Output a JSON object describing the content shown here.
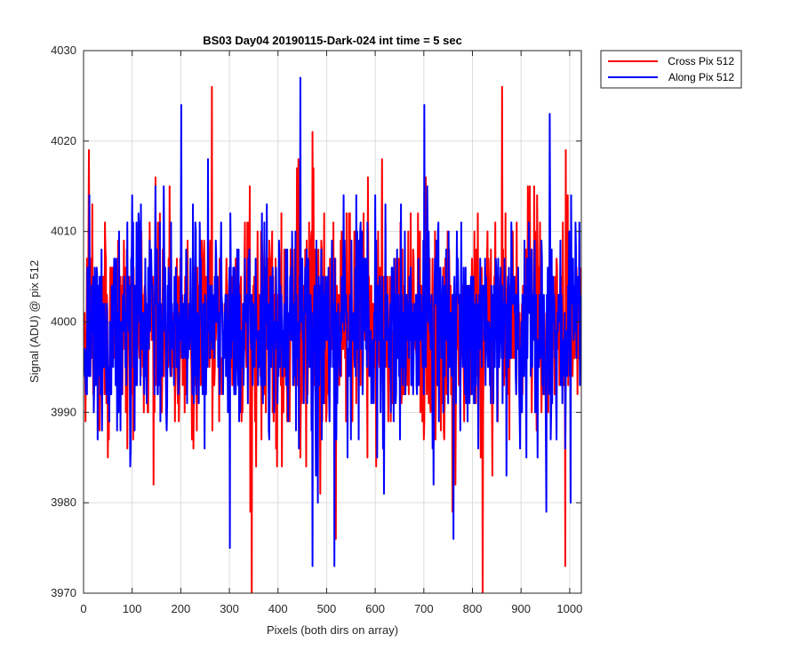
{
  "chart_data": {
    "type": "line",
    "title": "BS03 Day04 20190115-Dark-024 int time = 5 sec",
    "xlabel": "Pixels (both dirs on array)",
    "ylabel": "Signal (ADU) @ pix 512",
    "xlim": [
      0,
      1024
    ],
    "ylim": [
      3970,
      4030
    ],
    "xticks": [
      0,
      100,
      200,
      300,
      400,
      500,
      600,
      700,
      800,
      900,
      1000
    ],
    "yticks": [
      3970,
      3980,
      3990,
      4000,
      4010,
      4020,
      4030
    ],
    "xtick_labels": [
      "0",
      "100",
      "200",
      "300",
      "400",
      "500",
      "600",
      "700",
      "800",
      "900",
      "1000"
    ],
    "ytick_labels": [
      "3970",
      "3980",
      "3990",
      "4000",
      "4010",
      "4020",
      "4030"
    ],
    "grid": true,
    "legend_position": "outside-top-right",
    "n_points": 1024,
    "series": [
      {
        "name": "Cross Pix 512",
        "color": "#ff0000",
        "mean": 3999.5,
        "std": 6.2,
        "min": 3970,
        "max": 4026,
        "notable_points": [
          [
            10,
            4019
          ],
          [
            263,
            4026
          ],
          [
            345,
            3970
          ],
          [
            470,
            4021
          ],
          [
            613,
            4018
          ],
          [
            820,
            3970
          ],
          [
            860,
            4026
          ],
          [
            990,
            3973
          ]
        ]
      },
      {
        "name": "Along Pix 512",
        "color": "#0000ff",
        "mean": 3999.5,
        "std": 6.0,
        "min": 3973,
        "max": 4027,
        "notable_points": [
          [
            200,
            4024
          ],
          [
            300,
            3975
          ],
          [
            445,
            4027
          ],
          [
            470,
            3973
          ],
          [
            515,
            3973
          ],
          [
            700,
            4024
          ],
          [
            760,
            3976
          ],
          [
            958,
            4023
          ]
        ]
      }
    ]
  }
}
